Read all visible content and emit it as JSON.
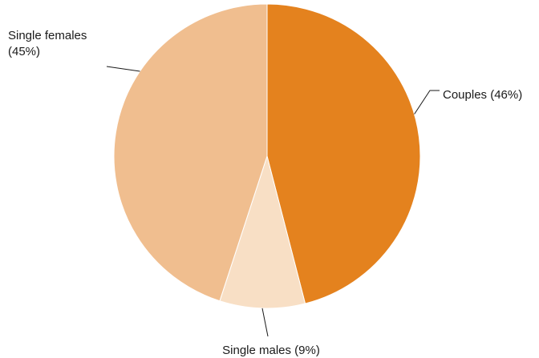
{
  "chart_data": {
    "type": "pie",
    "title": "",
    "slices": [
      {
        "label": "Couples (46%)",
        "value": 46,
        "color": "#e4821e"
      },
      {
        "label": "Single males (9%)",
        "value": 9,
        "color": "#f8dfc5"
      },
      {
        "label": "Single females (45%)",
        "label_lines": [
          "Single females",
          "(45%)"
        ],
        "value": 45,
        "color": "#f0be8f"
      }
    ],
    "start_angle": "12 o'clock",
    "direction": "clockwise",
    "legend": "none"
  }
}
